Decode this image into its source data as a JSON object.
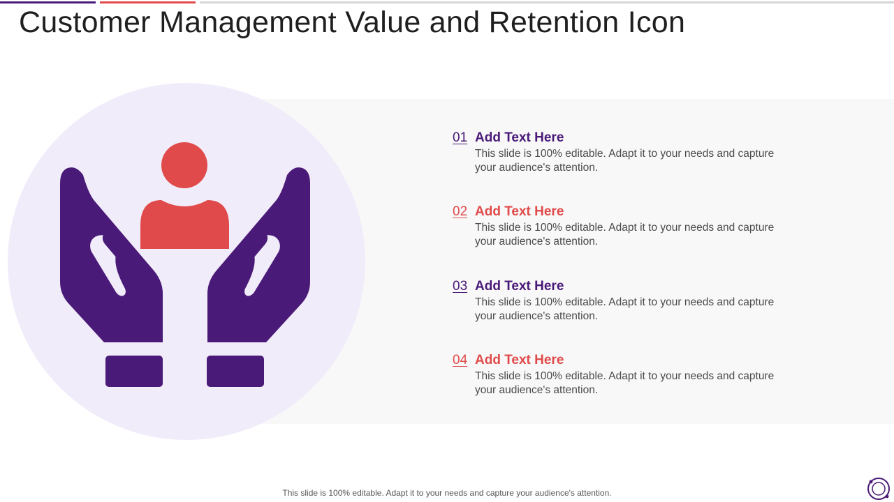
{
  "title": "Customer Management Value and Retention Icon",
  "items": [
    {
      "num": "01",
      "heading": "Add Text Here",
      "text": "This slide is 100% editable. Adapt it to your needs and capture your audience's attention."
    },
    {
      "num": "02",
      "heading": "Add Text Here",
      "text": "This slide is 100% editable. Adapt it to your needs and capture your audience's attention."
    },
    {
      "num": "03",
      "heading": "Add Text Here",
      "text": "This slide is 100% editable. Adapt it to your needs and capture your audience's attention."
    },
    {
      "num": "04",
      "heading": "Add Text Here",
      "text": "This slide is 100% editable. Adapt it to your needs and capture your audience's attention."
    }
  ],
  "footer": "This slide is 100% editable. Adapt it to your needs and capture your audience's attention.",
  "colors": {
    "purple": "#4a1a78",
    "red": "#e04a4a",
    "circle": "#f1ecfa"
  },
  "icon": "hands-holding-person-icon"
}
